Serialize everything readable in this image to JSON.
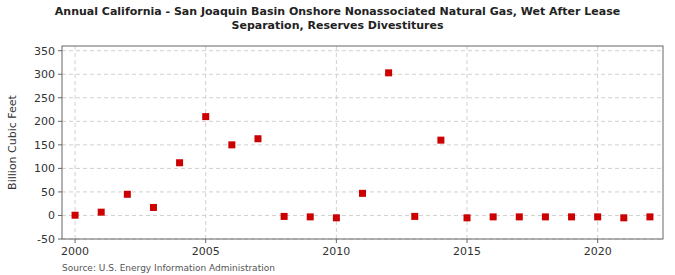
{
  "chart_data": {
    "type": "scatter",
    "title": "Annual California - San Joaquin Basin Onshore Nonassociated Natural Gas, Wet After Lease\nSeparation, Reserves Divestitures",
    "y_label": "Billion Cubic Feet",
    "annotations": [
      "Source: U.S. Energy Information Administration"
    ],
    "x": [
      2000,
      2001,
      2002,
      2003,
      2004,
      2005,
      2006,
      2007,
      2008,
      2009,
      2010,
      2011,
      2012,
      2013,
      2014,
      2015,
      2016,
      2017,
      2018,
      2019,
      2020,
      2021,
      2022
    ],
    "values": [
      0.5,
      7,
      45,
      17,
      112,
      210,
      150,
      163,
      -2,
      -3,
      -5,
      47,
      303,
      -2,
      160,
      -5,
      -3,
      -3,
      -3,
      -3,
      -3,
      -5,
      -3
    ],
    "color": "#cc0000",
    "marker": "square",
    "xlim": [
      1999.5,
      2022.5
    ],
    "xticks": [
      2000,
      2005,
      2010,
      2015,
      2020
    ],
    "ylim": [
      -50,
      360
    ],
    "yticks": [
      -50,
      0,
      50,
      100,
      150,
      200,
      250,
      300,
      350
    ],
    "grid": true
  }
}
